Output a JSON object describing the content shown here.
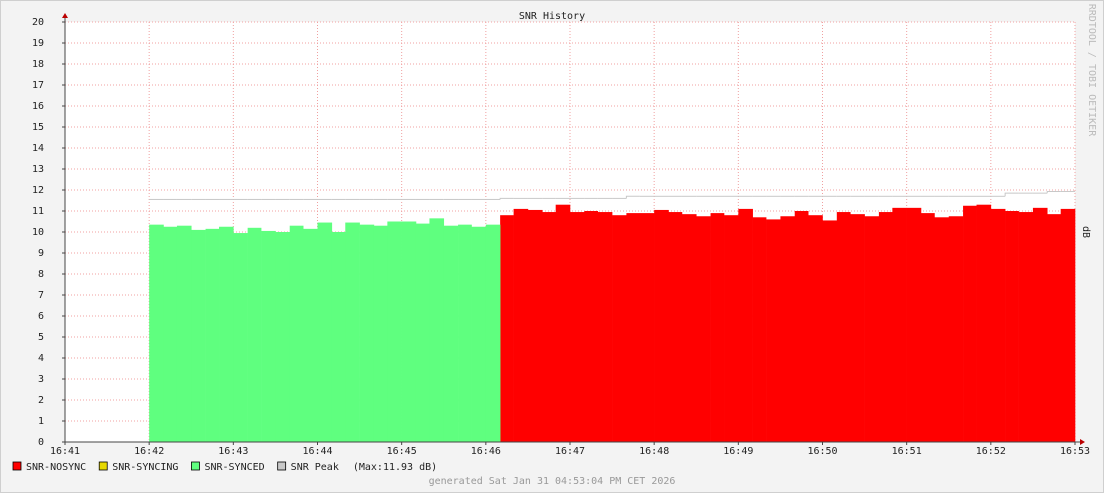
{
  "chart_data": {
    "type": "step-area",
    "title": "SNR History",
    "y_label": "dB",
    "watermark": "RRDTOOL / TOBI OETIKER",
    "footer": "generated Sat Jan 31 04:53:04 PM CET 2026",
    "xlim": [
      41,
      53
    ],
    "xticks": [
      {
        "value": 41,
        "label": "16:41"
      },
      {
        "value": 42,
        "label": "16:42"
      },
      {
        "value": 43,
        "label": "16:43"
      },
      {
        "value": 44,
        "label": "16:44"
      },
      {
        "value": 45,
        "label": "16:45"
      },
      {
        "value": 46,
        "label": "16:46"
      },
      {
        "value": 47,
        "label": "16:47"
      },
      {
        "value": 48,
        "label": "16:48"
      },
      {
        "value": 49,
        "label": "16:49"
      },
      {
        "value": 50,
        "label": "16:50"
      },
      {
        "value": 51,
        "label": "16:51"
      },
      {
        "value": 52,
        "label": "16:52"
      },
      {
        "value": 53,
        "label": "16:53"
      }
    ],
    "ylim": [
      0,
      20
    ],
    "yticks": [
      0,
      1,
      2,
      3,
      4,
      5,
      6,
      7,
      8,
      9,
      10,
      11,
      12,
      13,
      14,
      15,
      16,
      17,
      18,
      19,
      20
    ],
    "grid": true,
    "x": [
      42,
      42.17,
      42.33,
      42.5,
      42.67,
      42.83,
      43,
      43.17,
      43.33,
      43.5,
      43.67,
      43.83,
      44,
      44.17,
      44.33,
      44.5,
      44.67,
      44.83,
      45,
      45.17,
      45.33,
      45.5,
      45.67,
      45.83,
      46,
      46.17,
      46.33,
      46.5,
      46.67,
      46.83,
      47,
      47.17,
      47.33,
      47.5,
      47.67,
      47.83,
      48,
      48.17,
      48.33,
      48.5,
      48.67,
      48.83,
      49,
      49.17,
      49.33,
      49.5,
      49.67,
      49.83,
      50,
      50.17,
      50.33,
      50.5,
      50.67,
      50.83,
      51,
      51.17,
      51.33,
      51.5,
      51.67,
      51.83,
      52,
      52.17,
      52.33,
      52.5,
      52.67,
      52.83
    ],
    "series": [
      {
        "name": "SNR-NOSYNC",
        "color": "#ff0000",
        "style": "area",
        "values": [
          null,
          null,
          null,
          null,
          null,
          null,
          null,
          null,
          null,
          null,
          null,
          null,
          null,
          null,
          null,
          null,
          null,
          null,
          null,
          null,
          null,
          null,
          null,
          null,
          null,
          10.8,
          11.1,
          11.05,
          10.95,
          11.3,
          10.95,
          11.0,
          10.95,
          10.8,
          10.9,
          10.9,
          11.05,
          10.95,
          10.85,
          10.75,
          10.9,
          10.8,
          11.1,
          10.7,
          10.6,
          10.75,
          11.0,
          10.8,
          10.55,
          10.95,
          10.85,
          10.75,
          10.95,
          11.15,
          11.15,
          10.9,
          10.7,
          10.75,
          11.25,
          11.3,
          11.1,
          11.0,
          10.95,
          11.15,
          10.85,
          11.1
        ]
      },
      {
        "name": "SNR-SYNCING",
        "color": "#e6d800",
        "style": "area",
        "values": [
          null,
          null,
          null,
          null,
          null,
          null,
          null,
          null,
          null,
          null,
          null,
          null,
          null,
          null,
          null,
          null,
          null,
          null,
          null,
          null,
          null,
          null,
          null,
          null,
          null,
          null,
          null,
          null,
          null,
          null,
          null,
          null,
          null,
          null,
          null,
          null,
          null,
          null,
          null,
          null,
          null,
          null,
          null,
          null,
          null,
          null,
          null,
          null,
          null,
          null,
          null,
          null,
          null,
          null,
          null,
          null,
          null,
          null,
          null,
          null,
          null,
          null,
          null,
          null,
          null,
          null
        ]
      },
      {
        "name": "SNR-SYNCED",
        "color": "#5fff7f",
        "style": "area",
        "values": [
          10.35,
          10.25,
          10.3,
          10.1,
          10.15,
          10.25,
          9.95,
          10.2,
          10.05,
          10.0,
          10.3,
          10.15,
          10.45,
          10.0,
          10.45,
          10.35,
          10.3,
          10.5,
          10.5,
          10.4,
          10.65,
          10.3,
          10.35,
          10.25,
          10.35,
          null,
          null,
          null,
          null,
          null,
          null,
          null,
          null,
          null,
          null,
          null,
          null,
          null,
          null,
          null,
          null,
          null,
          null,
          null,
          null,
          null,
          null,
          null,
          null,
          null,
          null,
          null,
          null,
          null,
          null,
          null,
          null,
          null,
          null,
          null,
          null,
          null,
          null,
          null,
          null,
          null
        ]
      },
      {
        "name": "SNR Peak",
        "color": "#c8c8c8",
        "style": "line",
        "note": "(Max:11.93 dB)",
        "values": [
          11.55,
          11.55,
          11.55,
          11.55,
          11.55,
          11.55,
          11.55,
          11.55,
          11.55,
          11.55,
          11.55,
          11.55,
          11.55,
          11.55,
          11.55,
          11.55,
          11.55,
          11.55,
          11.55,
          11.55,
          11.55,
          11.55,
          11.55,
          11.55,
          11.55,
          11.6,
          11.6,
          11.6,
          11.6,
          11.6,
          11.6,
          11.6,
          11.6,
          11.6,
          11.7,
          11.7,
          11.7,
          11.7,
          11.7,
          11.7,
          11.7,
          11.7,
          11.7,
          11.7,
          11.7,
          11.7,
          11.7,
          11.7,
          11.7,
          11.7,
          11.7,
          11.7,
          11.7,
          11.7,
          11.7,
          11.7,
          11.7,
          11.7,
          11.7,
          11.7,
          11.7,
          11.85,
          11.85,
          11.85,
          11.93,
          11.93
        ]
      }
    ]
  }
}
